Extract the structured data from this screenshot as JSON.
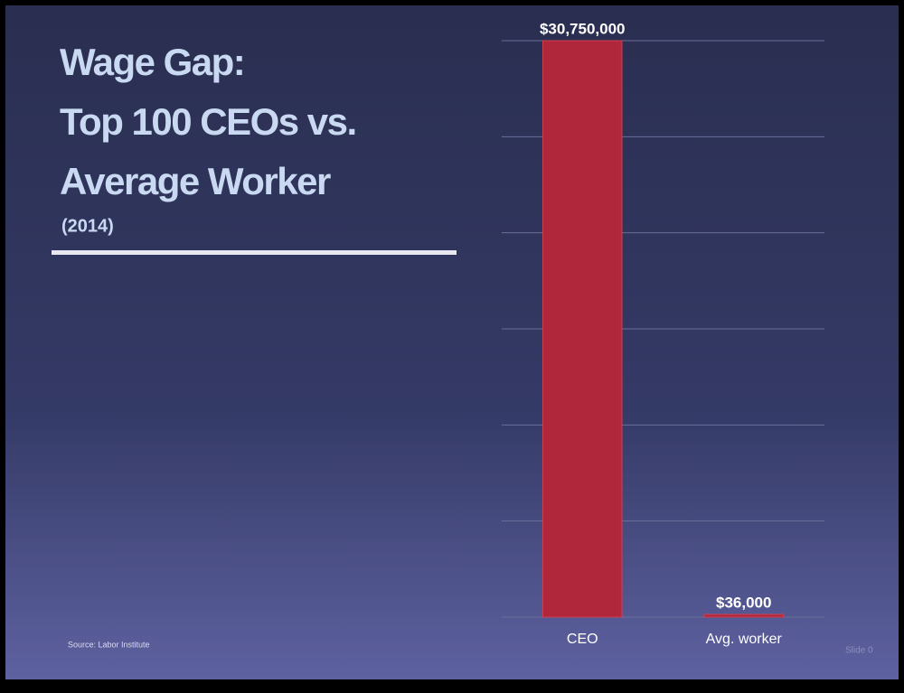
{
  "chart_data": {
    "type": "bar",
    "title": [
      "Wage Gap:",
      "Top 100 CEOs vs.",
      "Average Worker"
    ],
    "subtitle": "(2014)",
    "source": "Source: Labor Institute",
    "footer": "Slide 0",
    "categories": [
      "CEO",
      "Avg. worker"
    ],
    "values": [
      30750000,
      36000
    ],
    "value_labels": [
      "$30,750,000",
      "$36,000"
    ],
    "color": "#b0263a",
    "ylim": [
      0,
      30750000
    ],
    "grid": true,
    "grid_divisions": 6
  }
}
